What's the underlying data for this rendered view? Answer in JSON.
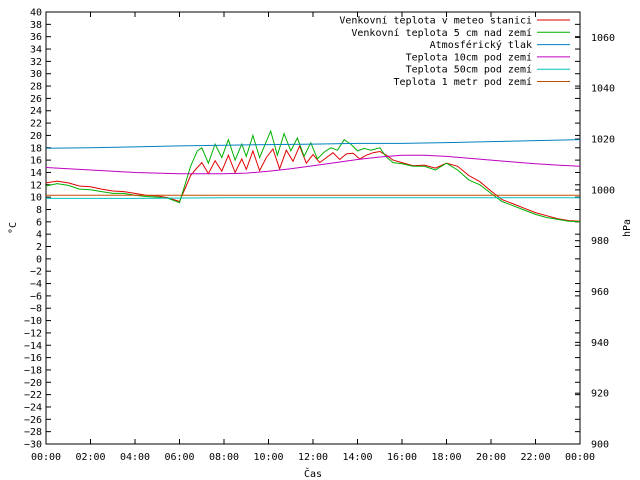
{
  "chart_data": {
    "type": "line",
    "xlabel": "Čas",
    "ylabel": "°C",
    "y2label": "hPa",
    "x_ticks": [
      "00:00",
      "02:00",
      "04:00",
      "06:00",
      "08:00",
      "10:00",
      "12:00",
      "14:00",
      "16:00",
      "18:00",
      "20:00",
      "22:00",
      "00:00"
    ],
    "x_range_hours": [
      0,
      24
    ],
    "ylim": [
      -30,
      40
    ],
    "y_ticks": [
      40,
      38,
      36,
      34,
      32,
      30,
      28,
      26,
      24,
      22,
      20,
      18,
      16,
      14,
      12,
      10,
      8,
      6,
      4,
      2,
      0,
      -2,
      -4,
      -6,
      -8,
      -10,
      -12,
      -14,
      -16,
      -18,
      -20,
      -22,
      -24,
      -26,
      -28,
      -30
    ],
    "y2lim": [
      900,
      1070
    ],
    "y2_ticks": [
      1060,
      1040,
      1020,
      1000,
      980,
      960,
      940,
      920,
      900
    ],
    "grid": false,
    "legend_position": "top-right",
    "series": [
      {
        "name": "Venkovní teplota v meteo stanici",
        "color": "#e00000",
        "axis": "left",
        "points": [
          [
            0,
            12.3
          ],
          [
            0.5,
            12.6
          ],
          [
            1,
            12.3
          ],
          [
            1.5,
            11.8
          ],
          [
            2,
            11.7
          ],
          [
            2.5,
            11.3
          ],
          [
            3,
            11.0
          ],
          [
            3.5,
            10.9
          ],
          [
            4,
            10.6
          ],
          [
            4.5,
            10.3
          ],
          [
            5,
            10.2
          ],
          [
            5.5,
            9.9
          ],
          [
            6,
            9.3
          ],
          [
            6.2,
            11
          ],
          [
            6.5,
            13.5
          ],
          [
            6.8,
            14.8
          ],
          [
            7,
            15.6
          ],
          [
            7.3,
            13.8
          ],
          [
            7.6,
            15.9
          ],
          [
            7.9,
            14.2
          ],
          [
            8.2,
            16.8
          ],
          [
            8.5,
            14.0
          ],
          [
            8.8,
            16.2
          ],
          [
            9,
            14.5
          ],
          [
            9.3,
            17.5
          ],
          [
            9.6,
            14.3
          ],
          [
            9.9,
            16.4
          ],
          [
            10.2,
            17.8
          ],
          [
            10.5,
            14.6
          ],
          [
            10.8,
            17.6
          ],
          [
            11.1,
            15.8
          ],
          [
            11.4,
            18.3
          ],
          [
            11.7,
            15.5
          ],
          [
            12,
            16.9
          ],
          [
            12.3,
            15.6
          ],
          [
            12.6,
            16.4
          ],
          [
            12.9,
            17.2
          ],
          [
            13.2,
            16.1
          ],
          [
            13.5,
            17.0
          ],
          [
            13.8,
            17.1
          ],
          [
            14.1,
            16.2
          ],
          [
            14.4,
            16.8
          ],
          [
            14.7,
            17.2
          ],
          [
            15,
            17.4
          ],
          [
            15.3,
            16.8
          ],
          [
            15.6,
            16.0
          ],
          [
            16,
            15.6
          ],
          [
            16.5,
            15.1
          ],
          [
            17,
            15.2
          ],
          [
            17.5,
            14.7
          ],
          [
            18,
            15.5
          ],
          [
            18.5,
            15.0
          ],
          [
            19,
            13.5
          ],
          [
            19.5,
            12.5
          ],
          [
            20,
            11.0
          ],
          [
            20.5,
            9.6
          ],
          [
            21,
            8.9
          ],
          [
            21.5,
            8.2
          ],
          [
            22,
            7.5
          ],
          [
            22.5,
            7.0
          ],
          [
            23,
            6.5
          ],
          [
            23.5,
            6.2
          ],
          [
            24,
            6.1
          ]
        ]
      },
      {
        "name": "Venkovní teplota 5 cm nad zemí",
        "color": "#00b000",
        "axis": "left",
        "points": [
          [
            0,
            11.8
          ],
          [
            0.5,
            12.2
          ],
          [
            1,
            11.9
          ],
          [
            1.5,
            11.3
          ],
          [
            2,
            11.2
          ],
          [
            2.5,
            10.9
          ],
          [
            3,
            10.6
          ],
          [
            3.5,
            10.6
          ],
          [
            4,
            10.3
          ],
          [
            4.5,
            10.1
          ],
          [
            5,
            10.0
          ],
          [
            5.5,
            9.8
          ],
          [
            6,
            9.1
          ],
          [
            6.2,
            11.5
          ],
          [
            6.5,
            15.0
          ],
          [
            6.8,
            17.5
          ],
          [
            7,
            18.0
          ],
          [
            7.3,
            15.5
          ],
          [
            7.6,
            18.6
          ],
          [
            7.9,
            16.4
          ],
          [
            8.2,
            19.3
          ],
          [
            8.5,
            16.0
          ],
          [
            8.8,
            18.6
          ],
          [
            9,
            16.6
          ],
          [
            9.3,
            20.0
          ],
          [
            9.6,
            16.4
          ],
          [
            9.9,
            19.0
          ],
          [
            10.1,
            20.7
          ],
          [
            10.4,
            16.8
          ],
          [
            10.7,
            20.3
          ],
          [
            11,
            17.5
          ],
          [
            11.3,
            19.6
          ],
          [
            11.6,
            16.6
          ],
          [
            11.9,
            18.8
          ],
          [
            12.2,
            16.2
          ],
          [
            12.5,
            17.3
          ],
          [
            12.8,
            18.0
          ],
          [
            13.1,
            17.6
          ],
          [
            13.4,
            19.3
          ],
          [
            13.7,
            18.6
          ],
          [
            14,
            17.5
          ],
          [
            14.3,
            17.9
          ],
          [
            14.6,
            17.6
          ],
          [
            15,
            18.0
          ],
          [
            15.3,
            16.5
          ],
          [
            15.6,
            15.6
          ],
          [
            16,
            15.4
          ],
          [
            16.5,
            15.0
          ],
          [
            17,
            15.0
          ],
          [
            17.5,
            14.4
          ],
          [
            18,
            15.5
          ],
          [
            18.5,
            14.4
          ],
          [
            19,
            12.8
          ],
          [
            19.5,
            12.0
          ],
          [
            20,
            10.6
          ],
          [
            20.5,
            9.3
          ],
          [
            21,
            8.6
          ],
          [
            21.5,
            7.9
          ],
          [
            22,
            7.2
          ],
          [
            22.5,
            6.7
          ],
          [
            23,
            6.4
          ],
          [
            23.5,
            6.1
          ],
          [
            24,
            6.0
          ]
        ]
      },
      {
        "name": "Atmosférický tlak",
        "color": "#0080c0",
        "axis": "right",
        "points": [
          [
            0,
            1016.4
          ],
          [
            2,
            1016.6
          ],
          [
            4,
            1016.9
          ],
          [
            6,
            1017.3
          ],
          [
            8,
            1017.6
          ],
          [
            10,
            1017.8
          ],
          [
            12,
            1018.0
          ],
          [
            14,
            1018.3
          ],
          [
            16,
            1018.3
          ],
          [
            18,
            1018.6
          ],
          [
            20,
            1019.0
          ],
          [
            22,
            1019.4
          ],
          [
            24,
            1019.8
          ]
        ]
      },
      {
        "name": "Teplota 10cm pod zemí",
        "color": "#c000c0",
        "axis": "left",
        "points": [
          [
            0,
            14.8
          ],
          [
            1,
            14.6
          ],
          [
            2,
            14.4
          ],
          [
            3,
            14.2
          ],
          [
            4,
            14.0
          ],
          [
            5,
            13.9
          ],
          [
            6,
            13.8
          ],
          [
            7,
            13.8
          ],
          [
            8,
            13.8
          ],
          [
            9,
            13.9
          ],
          [
            10,
            14.2
          ],
          [
            11,
            14.6
          ],
          [
            12,
            15.1
          ],
          [
            13,
            15.6
          ],
          [
            14,
            16.1
          ],
          [
            15,
            16.5
          ],
          [
            16,
            16.8
          ],
          [
            17,
            16.8
          ],
          [
            18,
            16.6
          ],
          [
            19,
            16.3
          ],
          [
            20,
            16.0
          ],
          [
            21,
            15.7
          ],
          [
            22,
            15.4
          ],
          [
            23,
            15.2
          ],
          [
            24,
            15.0
          ]
        ]
      },
      {
        "name": "Teplota 50cm pod zemí",
        "color": "#00c0c0",
        "axis": "left",
        "points": [
          [
            0,
            9.8
          ],
          [
            4,
            9.8
          ],
          [
            8,
            9.9
          ],
          [
            12,
            9.9
          ],
          [
            16,
            9.9
          ],
          [
            20,
            9.9
          ],
          [
            24,
            9.9
          ]
        ]
      },
      {
        "name": "Teplota 1 metr pod zemí",
        "color": "#c05000",
        "axis": "left",
        "points": [
          [
            0,
            10.3
          ],
          [
            24,
            10.3
          ]
        ]
      }
    ]
  }
}
